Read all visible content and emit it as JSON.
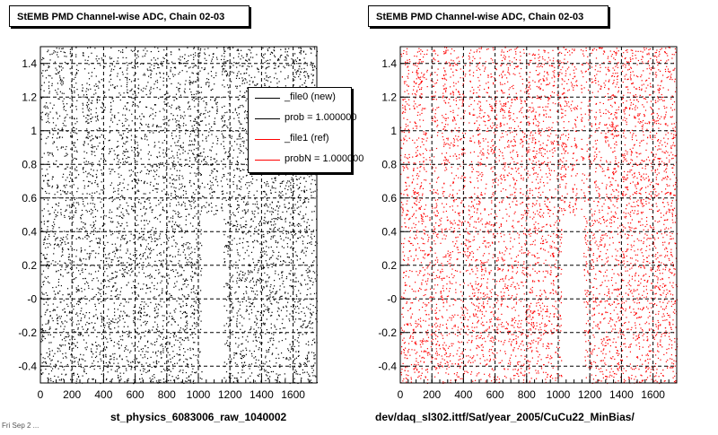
{
  "colors": {
    "left_points": "#000000",
    "right_points": "#ff0000",
    "grid": "#000000"
  },
  "panels": [
    {
      "title": "StEMB PMD Channel-wise ADC, Chain 02-03",
      "xcaption": "st_physics_6083006_raw_1040002"
    },
    {
      "title": "StEMB PMD Channel-wise ADC, Chain 02-03",
      "xcaption": "dev/daq_sl302.ittf/Sat/year_2005/CuCu22_MinBias/"
    }
  ],
  "legend": {
    "entries": [
      {
        "label": "_file0 (new)",
        "color": "#000000"
      },
      {
        "label": "prob = 1.000000",
        "color": "#000000"
      },
      {
        "label": "_file1 (ref)",
        "color": "#ff0000"
      },
      {
        "label": "probN = 1.000000",
        "color": "#ff0000"
      }
    ]
  },
  "footnote": "Fri Sep 2 ...",
  "chart_data": [
    {
      "type": "scatter",
      "title": "StEMB PMD Channel-wise ADC, Chain 02-03",
      "xlabel": "st_physics_6083006_raw_1040002",
      "ylabel": "",
      "xlim": [
        0,
        1750
      ],
      "ylim": [
        -0.5,
        1.5
      ],
      "xticks": [
        "0",
        "200",
        "400",
        "600",
        "800",
        "1000",
        "1200",
        "1400",
        "1600"
      ],
      "yticks": [
        "-0.4",
        "-0.2",
        "-0",
        "0.2",
        "0.4",
        "0.6",
        "0.8",
        "1",
        "1.2",
        "1.4"
      ],
      "grid": true,
      "series": [
        {
          "name": "_file0 (new)",
          "color": "#000000"
        }
      ],
      "regions": {
        "upper_band_y": [
          0.5,
          1.5
        ],
        "lower_band_y": [
          -0.5,
          0.5
        ],
        "lower_gap_x": [
          1020,
          1160
        ],
        "upper_empty_x": [
          [
            60,
            70
          ],
          [
            170,
            180
          ],
          [
            240,
            260
          ],
          [
            410,
            430
          ],
          [
            470,
            480
          ],
          [
            1120,
            1140
          ],
          [
            1380,
            1400
          ]
        ]
      }
    },
    {
      "type": "scatter",
      "title": "StEMB PMD Channel-wise ADC, Chain 02-03",
      "xlabel": "dev/daq_sl302.ittf/Sat/year_2005/CuCu22_MinBias/",
      "ylabel": "",
      "xlim": [
        0,
        1750
      ],
      "ylim": [
        -0.5,
        1.5
      ],
      "xticks": [
        "0",
        "200",
        "400",
        "600",
        "800",
        "1000",
        "1200",
        "1400",
        "1600"
      ],
      "yticks": [
        "-0.4",
        "-0.2",
        "-0",
        "0.2",
        "0.4",
        "0.6",
        "0.8",
        "1",
        "1.2",
        "1.4"
      ],
      "grid": true,
      "series": [
        {
          "name": "_file1 (ref)",
          "color": "#ff0000"
        }
      ],
      "regions": {
        "upper_band_y": [
          0.5,
          1.5
        ],
        "lower_band_y": [
          -0.5,
          0.5
        ],
        "lower_gap_x": [
          1020,
          1160
        ],
        "upper_empty_x": [
          [
            60,
            70
          ],
          [
            170,
            180
          ],
          [
            240,
            260
          ],
          [
            410,
            430
          ],
          [
            470,
            480
          ],
          [
            1120,
            1140
          ],
          [
            1380,
            1400
          ]
        ]
      }
    }
  ]
}
